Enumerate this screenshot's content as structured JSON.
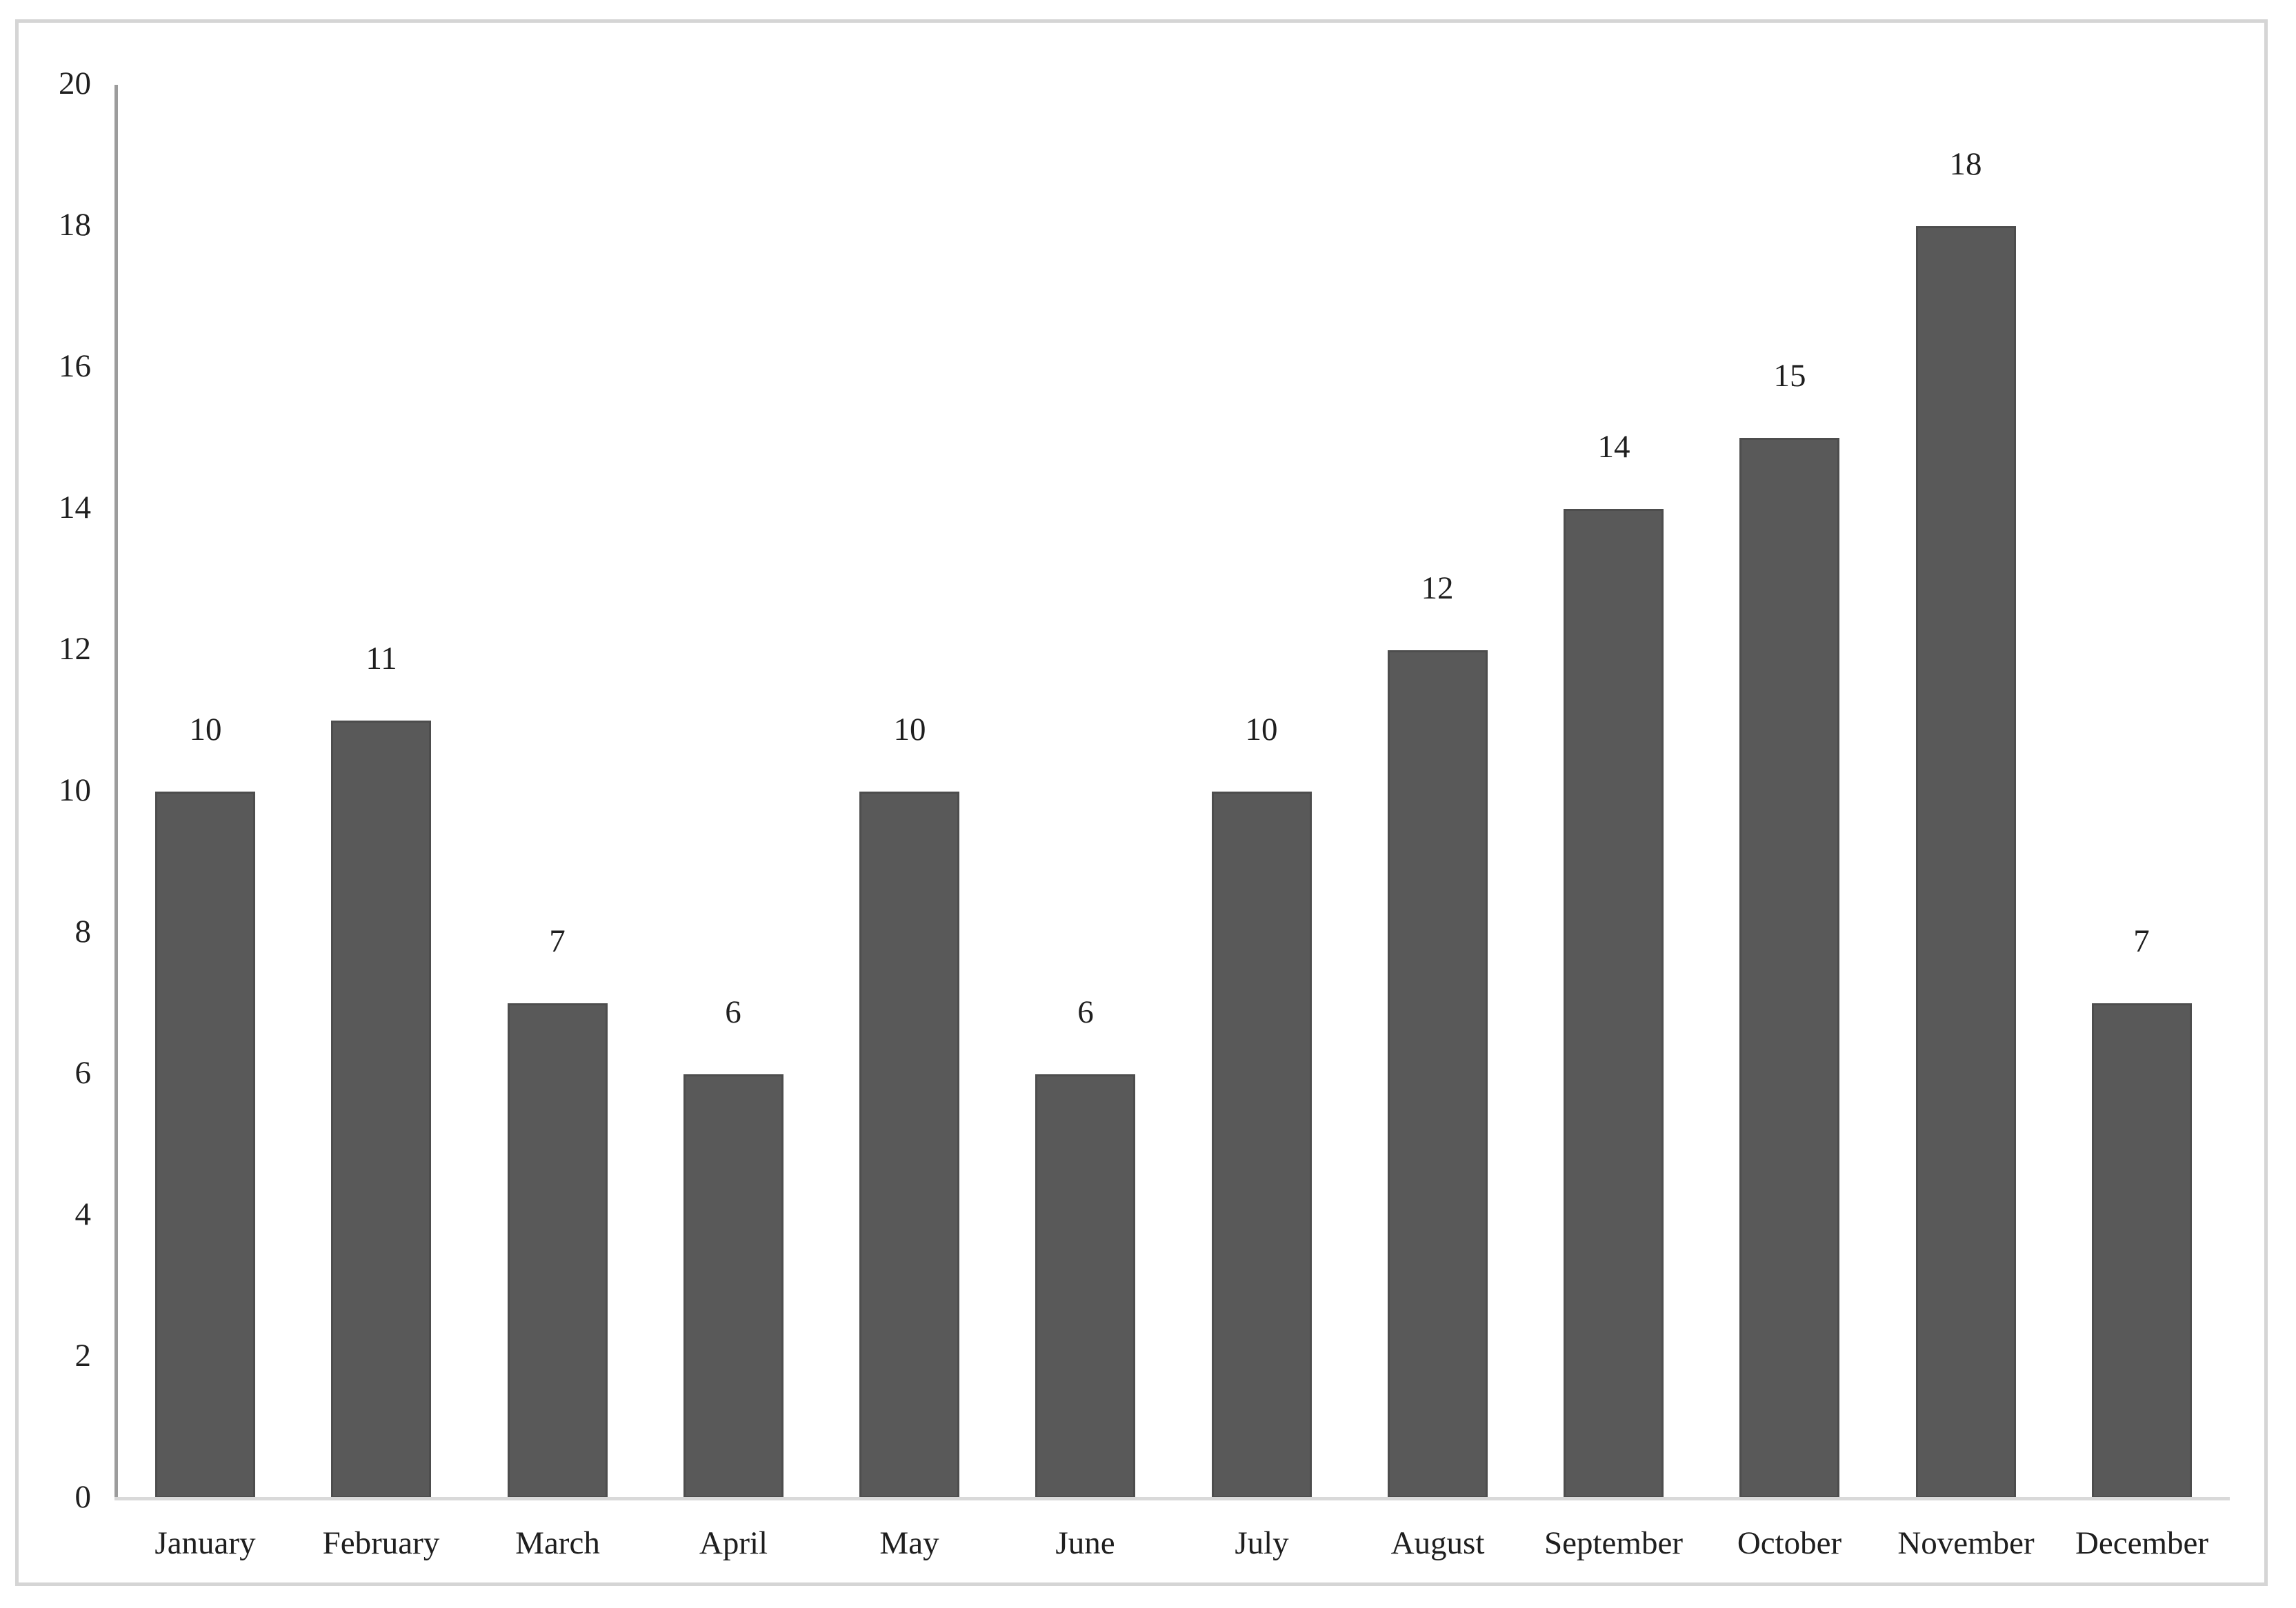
{
  "chart_data": {
    "type": "bar",
    "title": "",
    "xlabel": "",
    "ylabel": "",
    "categories": [
      "January",
      "February",
      "March",
      "April",
      "May",
      "June",
      "July",
      "August",
      "September",
      "October",
      "November",
      "December"
    ],
    "values": [
      10,
      11,
      7,
      6,
      10,
      6,
      10,
      12,
      14,
      15,
      18,
      7
    ],
    "value_labels_shown": true,
    "ylim": [
      0,
      20
    ],
    "y_ticks": [
      0,
      2,
      4,
      6,
      8,
      10,
      12,
      14,
      16,
      18,
      20
    ],
    "grid": false,
    "legend": "none",
    "colors": {
      "bar_fill": "#595959",
      "bar_border": "#4d4d4d",
      "y_axis_line": "#9c9c9c",
      "x_axis_line": "#d9d9d9",
      "frame_border": "#d5d5d5",
      "text": "#1f1f1f",
      "background": "#ffffff"
    }
  }
}
